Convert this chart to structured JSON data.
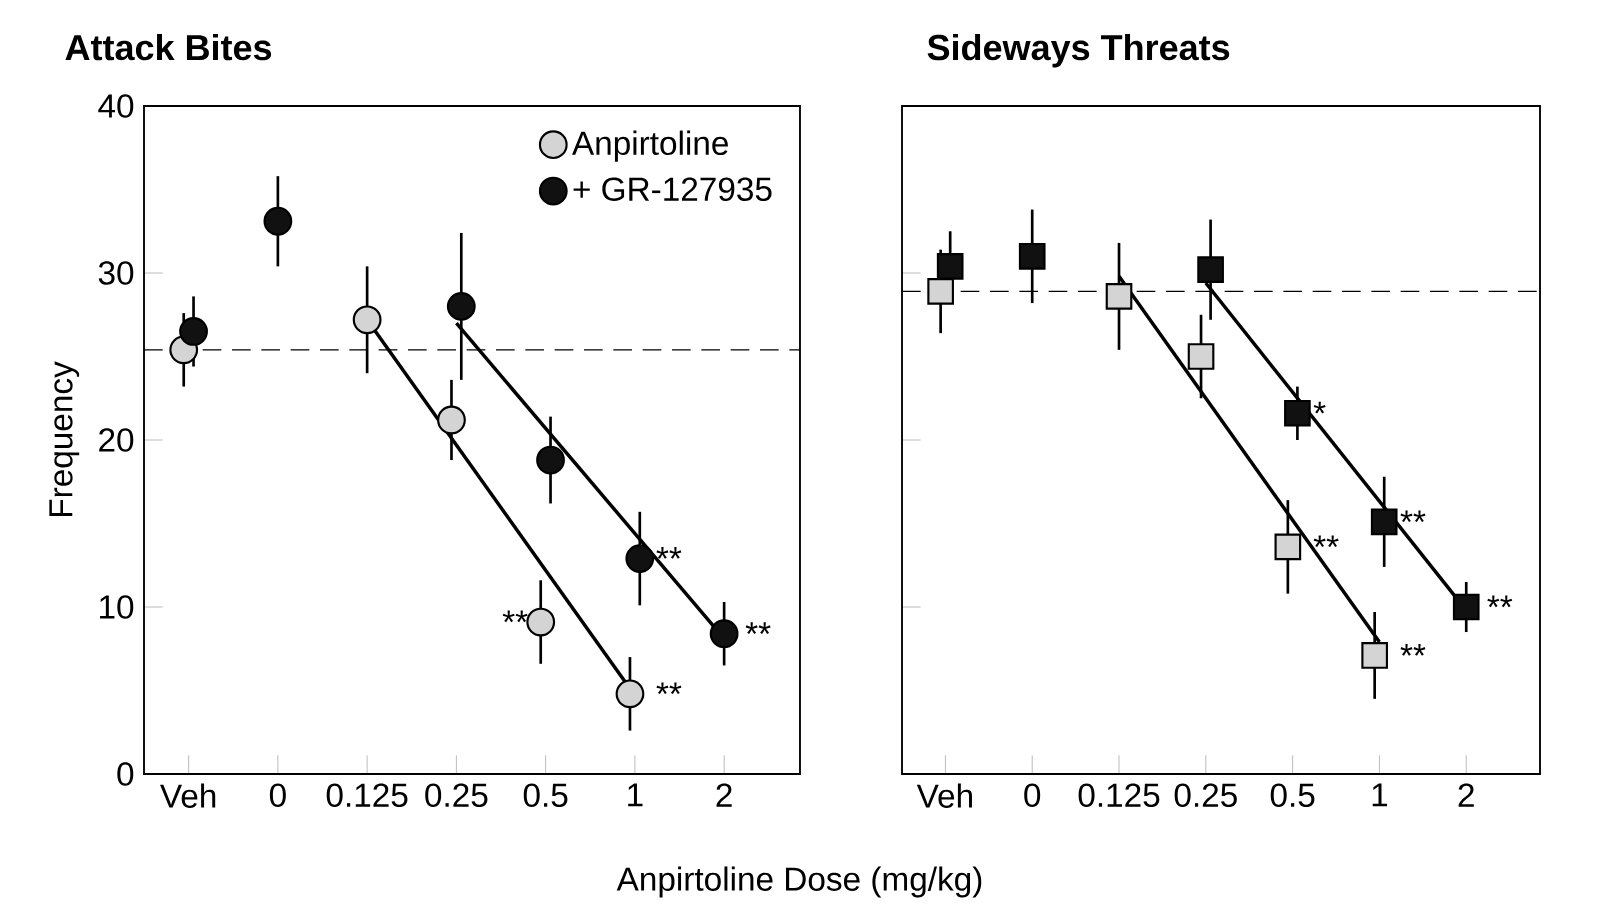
{
  "chart_data": [
    {
      "type": "scatter",
      "title": "Attack Bites",
      "xlabel": "Anpirtoline Dose (mg/kg)",
      "ylabel": "Frequency",
      "categories": [
        "Veh",
        "0",
        "0.125",
        "0.25",
        "0.5",
        "1",
        "2"
      ],
      "ylim": [
        0,
        40
      ],
      "yticks": [
        0,
        10,
        20,
        30,
        40
      ],
      "marker": "circle",
      "legend": "top right",
      "series": [
        {
          "name": "Anpirtoline",
          "color": "#d4d4d4",
          "values": [
            25.4,
            null,
            27.2,
            21.2,
            9.1,
            4.8,
            null
          ],
          "errors": [
            2.2,
            null,
            3.2,
            2.4,
            2.5,
            2.2,
            null
          ]
        },
        {
          "name": "+ GR-127935",
          "color": "#111111",
          "values": [
            26.5,
            33.1,
            null,
            28.0,
            18.8,
            12.9,
            8.4
          ],
          "errors": [
            2.1,
            2.7,
            null,
            4.4,
            2.6,
            2.8,
            1.9
          ]
        },
        {
          "type": "line",
          "color": "#000000",
          "x": [
            "0.125",
            "1"
          ],
          "values": [
            27.2,
            4.7
          ],
          "marker": "none"
        },
        {
          "type": "line",
          "color": "#000000",
          "x": [
            "0.25",
            "2"
          ],
          "values": [
            27.0,
            8.1
          ],
          "marker": "none"
        }
      ],
      "ref_lines": [
        {
          "axis": "y",
          "value": 25.4,
          "line_style": "dashed"
        }
      ],
      "annotations": [
        {
          "text": "**",
          "x": "0.5",
          "y": 9.1
        },
        {
          "text": "**",
          "x": "1",
          "y": 4.8
        },
        {
          "text": "**",
          "x": "1",
          "y": 12.9
        },
        {
          "text": "**",
          "x": "2",
          "y": 8.4
        }
      ]
    },
    {
      "type": "scatter",
      "title": "Sideways Threats",
      "categories": [
        "Veh",
        "0",
        "0.125",
        "0.25",
        "0.5",
        "1",
        "2"
      ],
      "ylim": [
        0,
        40
      ],
      "yticks": [
        0,
        10,
        20,
        30,
        40
      ],
      "tick_labels": "x",
      "marker": "square",
      "series": [
        {
          "color": "#d4d4d4",
          "values": [
            28.9,
            null,
            28.6,
            25.0,
            13.6,
            7.1,
            null
          ],
          "errors": [
            2.5,
            null,
            3.2,
            2.5,
            2.8,
            2.6,
            null
          ]
        },
        {
          "color": "#111111",
          "values": [
            30.4,
            31.0,
            null,
            30.2,
            21.6,
            15.1,
            10.0
          ],
          "errors": [
            2.1,
            2.8,
            null,
            3.0,
            1.6,
            2.7,
            1.5
          ]
        },
        {
          "type": "line",
          "color": "#000000",
          "x": [
            "0.125",
            "1"
          ],
          "values": [
            29.8,
            7.9
          ],
          "marker": "none"
        },
        {
          "type": "line",
          "color": "#000000",
          "x": [
            "0.25",
            "2"
          ],
          "values": [
            29.4,
            9.8
          ],
          "marker": "none"
        }
      ],
      "ref_lines": [
        {
          "axis": "y",
          "value": 28.9,
          "line_style": "dashed"
        }
      ],
      "annotations": [
        {
          "text": "*",
          "x": "0.5",
          "y": 21.6
        },
        {
          "text": "**",
          "x": "1",
          "y": 15.1
        },
        {
          "text": "**",
          "x": "2",
          "y": 10.0
        },
        {
          "text": "**",
          "x": "0.5",
          "y": 13.6
        },
        {
          "text": "**",
          "x": "1",
          "y": 7.1
        }
      ]
    }
  ]
}
